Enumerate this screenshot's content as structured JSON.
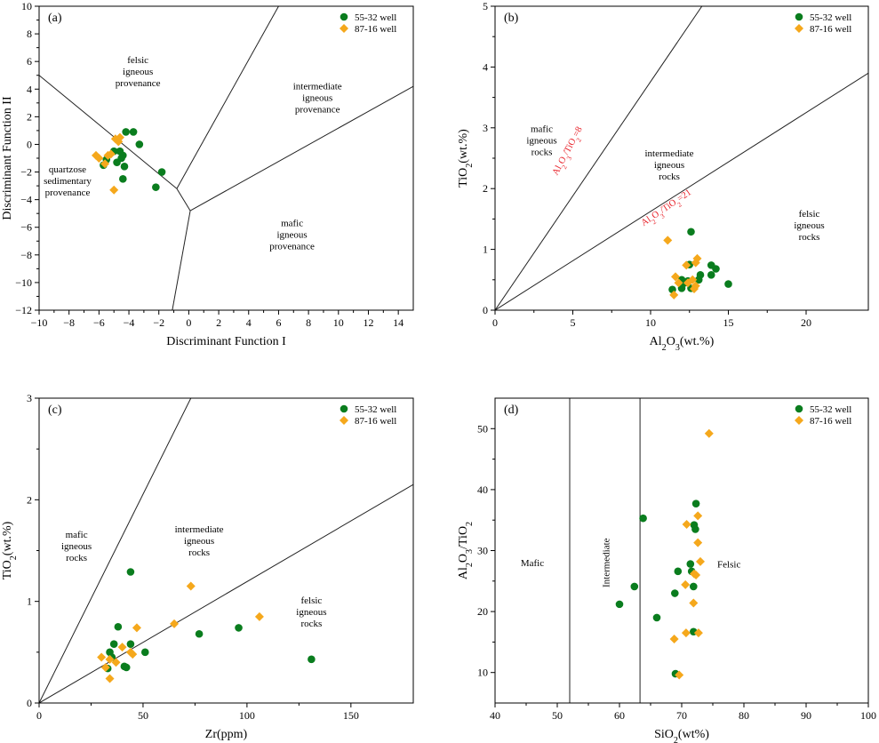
{
  "colors": {
    "green": "#0a7d1e",
    "orange": "#f5a81c",
    "red": "#e8222a",
    "axis": "#000000"
  },
  "chart_data": [
    {
      "type": "scatter",
      "panel_label": "(a)",
      "xlabel": "Discriminant Function I",
      "ylabel": "Discriminant Function II",
      "xlim": [
        -10,
        15
      ],
      "ylim": [
        -12,
        10
      ],
      "xticks": [
        -10,
        -8,
        -6,
        -4,
        -2,
        0,
        2,
        4,
        6,
        8,
        10,
        12,
        14
      ],
      "yticks": [
        -12,
        -10,
        -8,
        -6,
        -4,
        -2,
        0,
        2,
        4,
        6,
        8,
        10
      ],
      "legend": [
        {
          "label": "55-32 well",
          "marker": "circle",
          "color": "green"
        },
        {
          "label": "87-16 well",
          "marker": "diamond",
          "color": "orange"
        }
      ],
      "boundaries": [
        [
          [
            -10,
            5
          ],
          [
            -0.8,
            -3.2
          ]
        ],
        [
          [
            -0.8,
            -3.2
          ],
          [
            6,
            10
          ]
        ],
        [
          [
            -0.8,
            -3.2
          ],
          [
            0.1,
            -4.8
          ]
        ],
        [
          [
            0.1,
            -4.8
          ],
          [
            15,
            4.2
          ]
        ],
        [
          [
            0.1,
            -4.8
          ],
          [
            -1.1,
            -12
          ]
        ]
      ],
      "regions": [
        {
          "lines": [
            "felsic",
            "igneous",
            "provenance"
          ],
          "x": -3.4,
          "y": 5.3
        },
        {
          "lines": [
            "intermediate",
            "igneous",
            "provenance"
          ],
          "x": 8.6,
          "y": 3.4
        },
        {
          "lines": [
            "quartzose",
            "sedimentary",
            "provenance"
          ],
          "x": -8.1,
          "y": -2.6
        },
        {
          "lines": [
            "mafic",
            "igneous",
            "provenance"
          ],
          "x": 6.9,
          "y": -6.5
        }
      ],
      "series": [
        {
          "name": "55-32 well",
          "marker": "circle",
          "color": "green",
          "points": [
            [
              -4.2,
              0.9
            ],
            [
              -3.7,
              0.9
            ],
            [
              -3.3,
              0.0
            ],
            [
              -4.6,
              -0.5
            ],
            [
              -4.4,
              -0.8
            ],
            [
              -5.0,
              -0.5
            ],
            [
              -5.5,
              -1.1
            ],
            [
              -5.7,
              -1.5
            ],
            [
              -4.8,
              -1.3
            ],
            [
              -4.5,
              -1.0
            ],
            [
              -4.3,
              -1.6
            ],
            [
              -4.4,
              -2.5
            ],
            [
              -1.8,
              -2.0
            ],
            [
              -2.2,
              -3.1
            ]
          ]
        },
        {
          "name": "87-16 well",
          "marker": "diamond",
          "color": "orange",
          "points": [
            [
              -6.2,
              -0.8
            ],
            [
              -6.0,
              -1.0
            ],
            [
              -5.4,
              -0.8
            ],
            [
              -5.2,
              -0.7
            ],
            [
              -5.6,
              -1.4
            ],
            [
              -4.9,
              0.4
            ],
            [
              -4.7,
              0.2
            ],
            [
              -4.6,
              0.5
            ],
            [
              -5.0,
              -3.3
            ]
          ]
        }
      ]
    },
    {
      "type": "scatter",
      "panel_label": "(b)",
      "xlabel": "Al2O3(wt.%)",
      "ylabel": "TiO2(wt.%)",
      "xlim": [
        0,
        24
      ],
      "ylim": [
        0,
        5
      ],
      "xticks": [
        0,
        5,
        10,
        15,
        20
      ],
      "yticks": [
        0,
        1,
        2,
        3,
        4,
        5
      ],
      "legend": [
        {
          "label": "55-32 well",
          "marker": "circle",
          "color": "green"
        },
        {
          "label": "87-16 well",
          "marker": "diamond",
          "color": "orange"
        }
      ],
      "boundaries": [
        [
          [
            0,
            0
          ],
          [
            13.3,
            5
          ]
        ],
        [
          [
            0,
            0
          ],
          [
            24,
            3.9
          ]
        ]
      ],
      "ratio_labels": [
        {
          "text": "Al2O3/TiO2=8",
          "x": 4.8,
          "y": 2.6,
          "angle": -62
        },
        {
          "text": "Al2O3/TiO2=21",
          "x": 11.1,
          "y": 1.65,
          "angle": -34
        }
      ],
      "regions": [
        {
          "lines": [
            "mafic",
            "igneous",
            "rocks"
          ],
          "x": 3.0,
          "y": 2.8
        },
        {
          "lines": [
            "intermediate",
            "igneous",
            "rocks"
          ],
          "x": 11.2,
          "y": 2.4
        },
        {
          "lines": [
            "felsic",
            "igneous",
            "rocks"
          ],
          "x": 20.2,
          "y": 1.4
        }
      ],
      "series": [
        {
          "name": "55-32 well",
          "marker": "circle",
          "color": "green",
          "points": [
            [
              12.6,
              1.29
            ],
            [
              12.5,
              0.75
            ],
            [
              13.9,
              0.74
            ],
            [
              14.2,
              0.68
            ],
            [
              13.9,
              0.58
            ],
            [
              13.2,
              0.58
            ],
            [
              13.1,
              0.5
            ],
            [
              15.0,
              0.43
            ],
            [
              12.0,
              0.5
            ],
            [
              12.4,
              0.48
            ],
            [
              12.2,
              0.45
            ],
            [
              12.0,
              0.36
            ],
            [
              11.4,
              0.34
            ],
            [
              12.6,
              0.36
            ]
          ]
        },
        {
          "name": "87-16 well",
          "marker": "diamond",
          "color": "orange",
          "points": [
            [
              11.1,
              1.15
            ],
            [
              13.0,
              0.85
            ],
            [
              12.9,
              0.78
            ],
            [
              12.3,
              0.74
            ],
            [
              11.6,
              0.55
            ],
            [
              12.7,
              0.5
            ],
            [
              12.4,
              0.45
            ],
            [
              11.8,
              0.45
            ],
            [
              12.9,
              0.4
            ],
            [
              11.5,
              0.25
            ],
            [
              12.8,
              0.35
            ]
          ]
        }
      ]
    },
    {
      "type": "scatter",
      "panel_label": "(c)",
      "xlabel": "Zr(ppm)",
      "ylabel": "TiO2(wt.%)",
      "xlim": [
        0,
        180
      ],
      "ylim": [
        0,
        3
      ],
      "xticks": [
        0,
        50,
        100,
        150
      ],
      "yticks": [
        0,
        1,
        2,
        3
      ],
      "legend": [
        {
          "label": "55-32 well",
          "marker": "circle",
          "color": "green"
        },
        {
          "label": "87-16 well",
          "marker": "diamond",
          "color": "orange"
        }
      ],
      "boundaries": [
        [
          [
            0,
            0
          ],
          [
            73,
            3
          ]
        ],
        [
          [
            0,
            0
          ],
          [
            180,
            2.15
          ]
        ]
      ],
      "regions": [
        {
          "lines": [
            "mafic",
            "igneous",
            "rocks"
          ],
          "x": 18,
          "y": 1.55
        },
        {
          "lines": [
            "intermediate",
            "igneous",
            "rocks"
          ],
          "x": 77,
          "y": 1.6
        },
        {
          "lines": [
            "felsic",
            "igneous",
            "rocks"
          ],
          "x": 131,
          "y": 0.9
        }
      ],
      "series": [
        {
          "name": "55-32 well",
          "marker": "circle",
          "color": "green",
          "points": [
            [
              44,
              1.29
            ],
            [
              38,
              0.75
            ],
            [
              36,
              0.58
            ],
            [
              44,
              0.58
            ],
            [
              34,
              0.5
            ],
            [
              51,
              0.5
            ],
            [
              77,
              0.68
            ],
            [
              96,
              0.74
            ],
            [
              131,
              0.43
            ],
            [
              35,
              0.45
            ],
            [
              41,
              0.36
            ],
            [
              33,
              0.34
            ],
            [
              42,
              0.35
            ]
          ]
        },
        {
          "name": "87-16 well",
          "marker": "diamond",
          "color": "orange",
          "points": [
            [
              73,
              1.15
            ],
            [
              106,
              0.85
            ],
            [
              65,
              0.78
            ],
            [
              47,
              0.74
            ],
            [
              40,
              0.55
            ],
            [
              44,
              0.5
            ],
            [
              30,
              0.45
            ],
            [
              34,
              0.43
            ],
            [
              37,
              0.4
            ],
            [
              32,
              0.35
            ],
            [
              34,
              0.24
            ],
            [
              45,
              0.48
            ]
          ]
        }
      ]
    },
    {
      "type": "scatter",
      "panel_label": "(d)",
      "xlabel": "SiO2(wt%)",
      "ylabel": "Al2O3/TiO2",
      "xlim": [
        40,
        100
      ],
      "ylim": [
        5,
        55
      ],
      "xticks": [
        40,
        50,
        60,
        70,
        80,
        90,
        100
      ],
      "yticks": [
        10,
        20,
        30,
        40,
        50
      ],
      "legend": [
        {
          "label": "55-32 well",
          "marker": "circle",
          "color": "green"
        },
        {
          "label": "87-16 well",
          "marker": "diamond",
          "color": "orange"
        }
      ],
      "vlines": [
        52,
        63.3
      ],
      "regions": [
        {
          "lines": [
            "Mafic"
          ],
          "x": 46,
          "y": 28
        },
        {
          "lines": [
            "Intermediate"
          ],
          "x": 57.8,
          "y": 28,
          "angle": -90
        },
        {
          "lines": [
            "Felsic"
          ],
          "x": 77.6,
          "y": 27.8
        }
      ],
      "series": [
        {
          "name": "55-32 well",
          "marker": "circle",
          "color": "green",
          "points": [
            [
              63.8,
              35.3
            ],
            [
              72.3,
              37.7
            ],
            [
              72.0,
              34.2
            ],
            [
              72.2,
              33.5
            ],
            [
              71.4,
              27.8
            ],
            [
              71.6,
              26.6
            ],
            [
              69.4,
              26.6
            ],
            [
              62.4,
              24.1
            ],
            [
              71.9,
              24.1
            ],
            [
              68.9,
              23.0
            ],
            [
              60.0,
              21.2
            ],
            [
              66.0,
              19.0
            ],
            [
              71.9,
              16.7
            ],
            [
              69.0,
              9.8
            ]
          ]
        },
        {
          "name": "87-16 well",
          "marker": "diamond",
          "color": "orange",
          "points": [
            [
              74.4,
              49.2
            ],
            [
              72.6,
              35.7
            ],
            [
              70.8,
              34.3
            ],
            [
              72.6,
              31.3
            ],
            [
              73.0,
              28.2
            ],
            [
              72.0,
              26.2
            ],
            [
              72.3,
              26.0
            ],
            [
              70.6,
              24.4
            ],
            [
              71.9,
              21.4
            ],
            [
              70.7,
              16.5
            ],
            [
              72.7,
              16.5
            ],
            [
              68.8,
              15.5
            ],
            [
              69.6,
              9.6
            ]
          ]
        }
      ]
    }
  ]
}
